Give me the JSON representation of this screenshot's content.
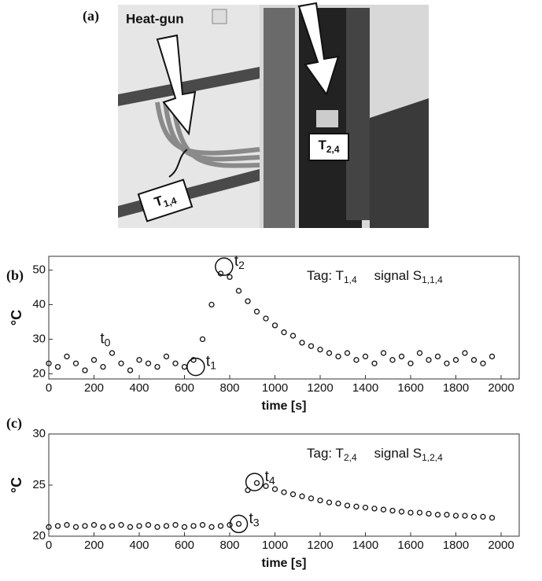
{
  "photo": {
    "panel_label": "(a)",
    "heat_gun": "Heat-gun",
    "tag1": {
      "text": "T",
      "subscript": "1,4"
    },
    "tag2": {
      "text": "T",
      "subscript": "2,4"
    }
  },
  "chart_data": [
    {
      "type": "scatter",
      "panel_label": "(b)",
      "x_label": "time [s]",
      "y_label": "°C",
      "annotations": [
        {
          "text": "Tag: T",
          "subscript": "1,4"
        },
        {
          "text": "signal S",
          "subscript": "1,1,4"
        }
      ],
      "markers": [
        {
          "text": "t",
          "subscript": "0",
          "x": 250,
          "y": 30,
          "circled": false
        },
        {
          "text": "t",
          "subscript": "1",
          "x": 650,
          "y": 22,
          "circled": true
        },
        {
          "text": "t",
          "subscript": "2",
          "x": 775,
          "y": 51,
          "circled": true
        }
      ],
      "x": [
        0,
        40,
        80,
        120,
        160,
        200,
        240,
        280,
        320,
        360,
        400,
        440,
        480,
        520,
        560,
        600,
        640,
        680,
        720,
        760,
        800,
        840,
        880,
        920,
        960,
        1000,
        1040,
        1080,
        1120,
        1160,
        1200,
        1240,
        1280,
        1320,
        1360,
        1400,
        1440,
        1480,
        1520,
        1560,
        1600,
        1640,
        1680,
        1720,
        1760,
        1800,
        1840,
        1880,
        1920,
        1960
      ],
      "series": [
        {
          "color": "#111111",
          "values": [
            23,
            22,
            25,
            23,
            21,
            24,
            22,
            26,
            23,
            21,
            24,
            23,
            22,
            25,
            23,
            22,
            24,
            30,
            40,
            49,
            48,
            44,
            41,
            38,
            36,
            34,
            32,
            31,
            29,
            28,
            27,
            26,
            25,
            26,
            24,
            25,
            23,
            26,
            24,
            25,
            23,
            26,
            24,
            25,
            23,
            24,
            26,
            24,
            23,
            25
          ]
        }
      ],
      "xlim": [
        0,
        2080
      ],
      "xticks": [
        0,
        200,
        400,
        600,
        800,
        1000,
        1200,
        1400,
        1600,
        1800,
        2000
      ],
      "ylim": [
        18.5,
        54
      ],
      "yticks": [
        20,
        30,
        40,
        50
      ]
    },
    {
      "type": "scatter",
      "panel_label": "(c)",
      "x_label": "time [s]",
      "y_label": "°C",
      "annotations": [
        {
          "text": "Tag: T",
          "subscript": "2,4"
        },
        {
          "text": "signal S",
          "subscript": "1,2,4"
        }
      ],
      "markers": [
        {
          "text": "t",
          "subscript": "3",
          "x": 840,
          "y": 21.2,
          "circled": true
        },
        {
          "text": "t",
          "subscript": "4",
          "x": 910,
          "y": 25.3,
          "circled": true
        }
      ],
      "x": [
        0,
        40,
        80,
        120,
        160,
        200,
        240,
        280,
        320,
        360,
        400,
        440,
        480,
        520,
        560,
        600,
        640,
        680,
        720,
        760,
        800,
        840,
        880,
        920,
        960,
        1000,
        1040,
        1080,
        1120,
        1160,
        1200,
        1240,
        1280,
        1320,
        1360,
        1400,
        1440,
        1480,
        1520,
        1560,
        1600,
        1640,
        1680,
        1720,
        1760,
        1800,
        1840,
        1880,
        1920,
        1960
      ],
      "series": [
        {
          "color": "#111111",
          "values": [
            20.9,
            21.0,
            21.1,
            20.9,
            21.0,
            21.1,
            20.9,
            21.0,
            21.1,
            20.9,
            21.0,
            21.1,
            20.9,
            21.0,
            21.1,
            20.9,
            21.0,
            21.1,
            20.9,
            21.0,
            21.1,
            21.2,
            24.5,
            25.2,
            24.9,
            24.6,
            24.3,
            24.1,
            23.9,
            23.7,
            23.5,
            23.3,
            23.2,
            23.0,
            22.9,
            22.8,
            22.7,
            22.6,
            22.5,
            22.4,
            22.3,
            22.3,
            22.2,
            22.1,
            22.1,
            22.0,
            22.0,
            21.9,
            21.9,
            21.8
          ]
        }
      ],
      "xlim": [
        0,
        2080
      ],
      "xticks": [
        0,
        200,
        400,
        600,
        800,
        1000,
        1200,
        1400,
        1600,
        1800,
        2000
      ],
      "ylim": [
        20,
        30
      ],
      "yticks": [
        20,
        25,
        30
      ]
    }
  ]
}
